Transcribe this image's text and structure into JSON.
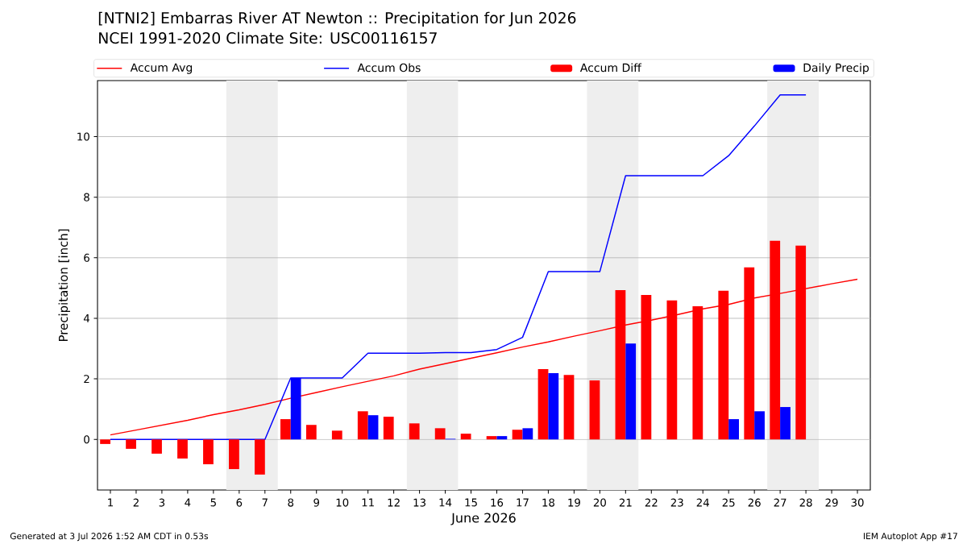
{
  "chart_data": {
    "type": "bar",
    "title": "[NTNI2] Embarras River  AT Newton :: Precipitation for Jun 2026",
    "subtitle": "NCEI 1991-2020 Climate Site: USC00116157",
    "xlabel": "June 2026",
    "ylabel": "Precipitation [inch]",
    "annotations": [
      "Generated at 3 Jul 2026 1:52 AM CDT in 0.53s",
      "IEM Autoplot App #17"
    ],
    "x": [
      1,
      2,
      3,
      4,
      5,
      6,
      7,
      8,
      9,
      10,
      11,
      12,
      13,
      14,
      15,
      16,
      17,
      18,
      19,
      20,
      21,
      22,
      23,
      24,
      25,
      26,
      27,
      28,
      29,
      30
    ],
    "series": [
      {
        "name": "Accum Avg",
        "type": "line",
        "color": "#ff0000",
        "values": [
          0.15,
          0.31,
          0.47,
          0.63,
          0.82,
          0.98,
          1.16,
          1.36,
          1.55,
          1.74,
          1.92,
          2.1,
          2.32,
          2.5,
          2.68,
          2.86,
          3.05,
          3.22,
          3.41,
          3.59,
          3.78,
          3.94,
          4.12,
          4.31,
          4.46,
          4.67,
          4.82,
          4.98,
          5.14,
          5.29
        ]
      },
      {
        "name": "Accum Obs",
        "type": "line",
        "color": "#0000ff",
        "values": [
          0,
          0,
          0,
          0,
          0,
          0,
          0,
          2.03,
          2.03,
          2.03,
          2.85,
          2.85,
          2.85,
          2.87,
          2.87,
          2.97,
          3.37,
          5.54,
          5.54,
          5.54,
          8.71,
          8.71,
          8.71,
          8.71,
          9.37,
          10.35,
          11.38,
          11.38,
          null,
          null
        ]
      },
      {
        "name": "Accum Diff",
        "color": "#ff0000",
        "values": [
          -0.15,
          -0.31,
          -0.47,
          -0.63,
          -0.82,
          -0.98,
          -1.16,
          0.67,
          0.48,
          0.29,
          0.93,
          0.75,
          0.53,
          0.37,
          0.19,
          0.11,
          0.32,
          2.32,
          2.13,
          1.95,
          4.93,
          4.77,
          4.59,
          4.4,
          4.91,
          5.68,
          6.56,
          6.4,
          null,
          null
        ]
      },
      {
        "name": "Daily Precip",
        "color": "#0000ff",
        "values": [
          0,
          0,
          0,
          0,
          0,
          0,
          0,
          2.03,
          0,
          0,
          0.8,
          0,
          0,
          0.02,
          0,
          0.11,
          0.37,
          2.19,
          0,
          0,
          3.17,
          0,
          0,
          0,
          0.67,
          0.93,
          1.07,
          0,
          null,
          null
        ]
      }
    ],
    "xlim": [
      0.5,
      30.5
    ],
    "xticks": [
      1,
      2,
      3,
      4,
      5,
      6,
      7,
      8,
      9,
      10,
      11,
      12,
      13,
      14,
      15,
      16,
      17,
      18,
      19,
      20,
      21,
      22,
      23,
      24,
      25,
      26,
      27,
      28,
      29,
      30
    ],
    "ylim": [
      -1.67,
      11.85
    ],
    "yticks": [
      0,
      2,
      4,
      6,
      8,
      10
    ],
    "bands": [
      {
        "axis": "x",
        "from": 5.5,
        "to": 7.5,
        "color": "#eeeeee"
      },
      {
        "axis": "x",
        "from": 12.5,
        "to": 14.5,
        "color": "#eeeeee"
      },
      {
        "axis": "x",
        "from": 19.5,
        "to": 21.5,
        "color": "#eeeeee"
      },
      {
        "axis": "x",
        "from": 26.5,
        "to": 28.5,
        "color": "#eeeeee"
      }
    ],
    "grid": "y",
    "legend": "top"
  }
}
